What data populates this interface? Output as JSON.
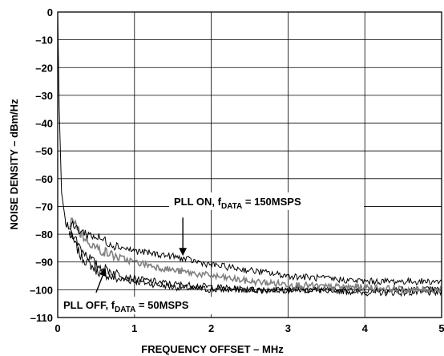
{
  "chart_data": {
    "type": "line",
    "xlabel": "FREQUENCY OFFSET – MHz",
    "ylabel": "NOISE DENSITY – dBm/Hz",
    "xlim": [
      0,
      5
    ],
    "ylim": [
      -110,
      0
    ],
    "x_ticks": [
      0,
      1,
      2,
      3,
      4,
      5
    ],
    "x_tick_labels": [
      "0",
      "1",
      "2",
      "3",
      "4",
      "5"
    ],
    "y_ticks": [
      0,
      -10,
      -20,
      -30,
      -40,
      -50,
      -60,
      -70,
      -80,
      -90,
      -100,
      -110
    ],
    "y_tick_labels": [
      "0",
      "–10",
      "–20",
      "–30",
      "–40",
      "–50",
      "–60",
      "–70",
      "–80",
      "–90",
      "–100",
      "–110"
    ],
    "grid": true,
    "series": [
      {
        "color": "#000000",
        "x": [
          0,
          0.02,
          0.05,
          0.1,
          0.15,
          0.2,
          0.3,
          0.5,
          0.75,
          1,
          1.5,
          2,
          2.5,
          3,
          3.5,
          4,
          4.5,
          5
        ],
        "y": [
          0,
          -35,
          -65,
          -75,
          -78,
          -77,
          -79,
          -81,
          -84,
          -86,
          -88,
          -91,
          -93,
          -95,
          -96,
          -97,
          -97,
          -97
        ]
      },
      {
        "color": "#808080",
        "x": [
          0.15,
          0.2,
          0.3,
          0.5,
          0.75,
          1,
          1.5,
          2,
          2.5,
          3,
          3.5,
          4,
          4.5,
          5
        ],
        "y": [
          -78,
          -74,
          -80,
          -85,
          -88,
          -90,
          -93,
          -95,
          -97,
          -98,
          -99,
          -99,
          -100,
          -100
        ]
      },
      {
        "color": "#000000",
        "x": [
          0.15,
          0.2,
          0.3,
          0.5,
          0.75,
          1,
          1.5,
          2,
          2.5,
          3,
          3.5,
          4,
          4.5,
          5
        ],
        "y": [
          -79,
          -80,
          -85,
          -91,
          -94,
          -96,
          -98,
          -99,
          -100,
          -100,
          -100,
          -100,
          -100,
          -100
        ]
      },
      {
        "color": "#000000",
        "x": [
          0.15,
          0.2,
          0.3,
          0.5,
          0.75,
          1,
          1.5,
          2,
          2.5,
          3,
          3.5,
          4,
          4.5,
          5
        ],
        "y": [
          -80,
          -82,
          -88,
          -93,
          -96,
          -97,
          -99,
          -100,
          -100,
          -100,
          -100,
          -101,
          -101,
          -101
        ]
      }
    ],
    "annotations": [
      {
        "id": "pll-on",
        "prefix": "PLL ON, f",
        "sub": "DATA",
        "suffix": " = 150MSPS",
        "arrow_from": [
          1.63,
          -74
        ],
        "arrow_to": [
          1.63,
          -87.5
        ]
      },
      {
        "id": "pll-off",
        "prefix": "PLL OFF, f",
        "sub": "DATA",
        "suffix": " = 50MSPS",
        "arrow_from": [
          0.5,
          -101
        ],
        "arrow_to": [
          0.62,
          -92.5
        ]
      }
    ]
  }
}
